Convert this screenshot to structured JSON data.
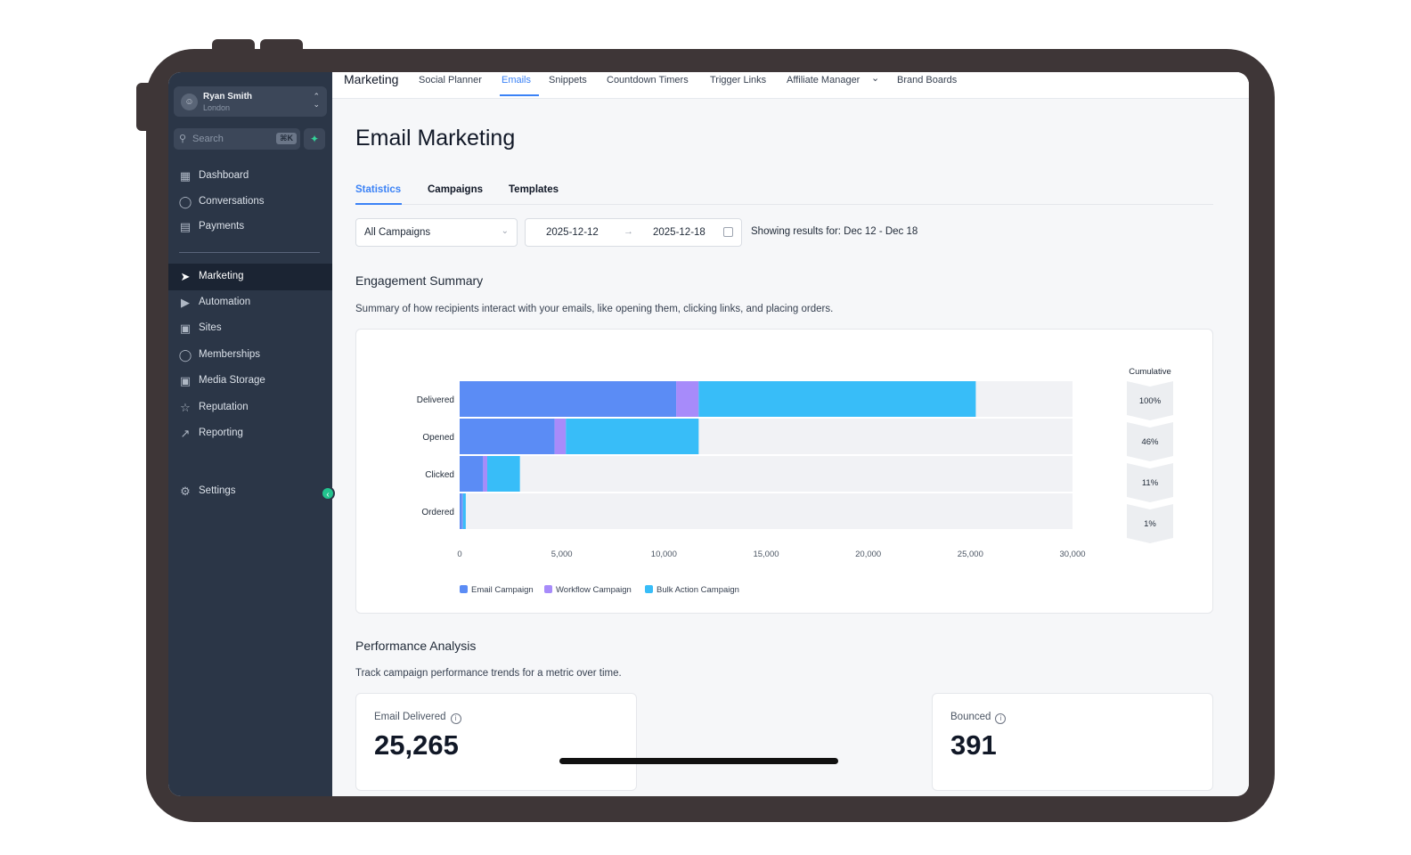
{
  "user": {
    "name": "Ryan Smith",
    "location": "London"
  },
  "search": {
    "placeholder": "Search",
    "shortcut": "⌘K"
  },
  "sidebar": {
    "items": [
      {
        "label": "Dashboard"
      },
      {
        "label": "Conversations"
      },
      {
        "label": "Payments"
      },
      {
        "label": "Marketing",
        "active": true
      },
      {
        "label": "Automation"
      },
      {
        "label": "Sites"
      },
      {
        "label": "Memberships"
      },
      {
        "label": "Media Storage"
      },
      {
        "label": "Reputation"
      },
      {
        "label": "Reporting"
      },
      {
        "label": "Settings"
      }
    ]
  },
  "topbar": {
    "title": "Marketing",
    "tabs": [
      {
        "label": "Social Planner"
      },
      {
        "label": "Emails",
        "active": true
      },
      {
        "label": "Snippets"
      },
      {
        "label": "Countdown Timers"
      },
      {
        "label": "Trigger Links"
      },
      {
        "label": "Affiliate Manager"
      },
      {
        "label": "Brand Boards"
      }
    ]
  },
  "page": {
    "title": "Email Marketing",
    "subtabs": [
      {
        "label": "Statistics",
        "active": true
      },
      {
        "label": "Campaigns"
      },
      {
        "label": "Templates"
      }
    ]
  },
  "filters": {
    "campaign": "All Campaigns",
    "date_from": "2025-12-12",
    "date_to": "2025-12-18",
    "showing": "Showing results for: Dec 12 - Dec 18"
  },
  "engagement": {
    "title": "Engagement Summary",
    "description": "Summary of how recipients interact with your emails, like opening them, clicking links, and placing orders."
  },
  "chart_data": {
    "type": "bar",
    "orientation": "horizontal",
    "stacked": true,
    "categories": [
      "Delivered",
      "Opened",
      "Clicked",
      "Ordered"
    ],
    "series": [
      {
        "name": "Email Campaign",
        "color": "#5b8cf5",
        "values": [
          10600,
          4650,
          1150,
          120
        ]
      },
      {
        "name": "Workflow Campaign",
        "color": "#a78bfa",
        "values": [
          1100,
          550,
          200,
          30
        ]
      },
      {
        "name": "Bulk Action Campaign",
        "color": "#38bdf8",
        "values": [
          13565,
          6500,
          1600,
          150
        ]
      }
    ],
    "xlim": [
      0,
      30000
    ],
    "xticks": [
      "0",
      "5,000",
      "10,000",
      "15,000",
      "20,000",
      "25,000",
      "30,000"
    ],
    "cumulative_title": "Cumulative",
    "cumulative": [
      "100%",
      "46%",
      "11%",
      "1%"
    ],
    "legend": "bottom"
  },
  "performance": {
    "title": "Performance Analysis",
    "description": "Track campaign performance trends for a metric over time.",
    "delivered_label": "Email Delivered",
    "delivered_value": "25,265",
    "bounced_label": "Bounced",
    "bounced_value": "391"
  }
}
